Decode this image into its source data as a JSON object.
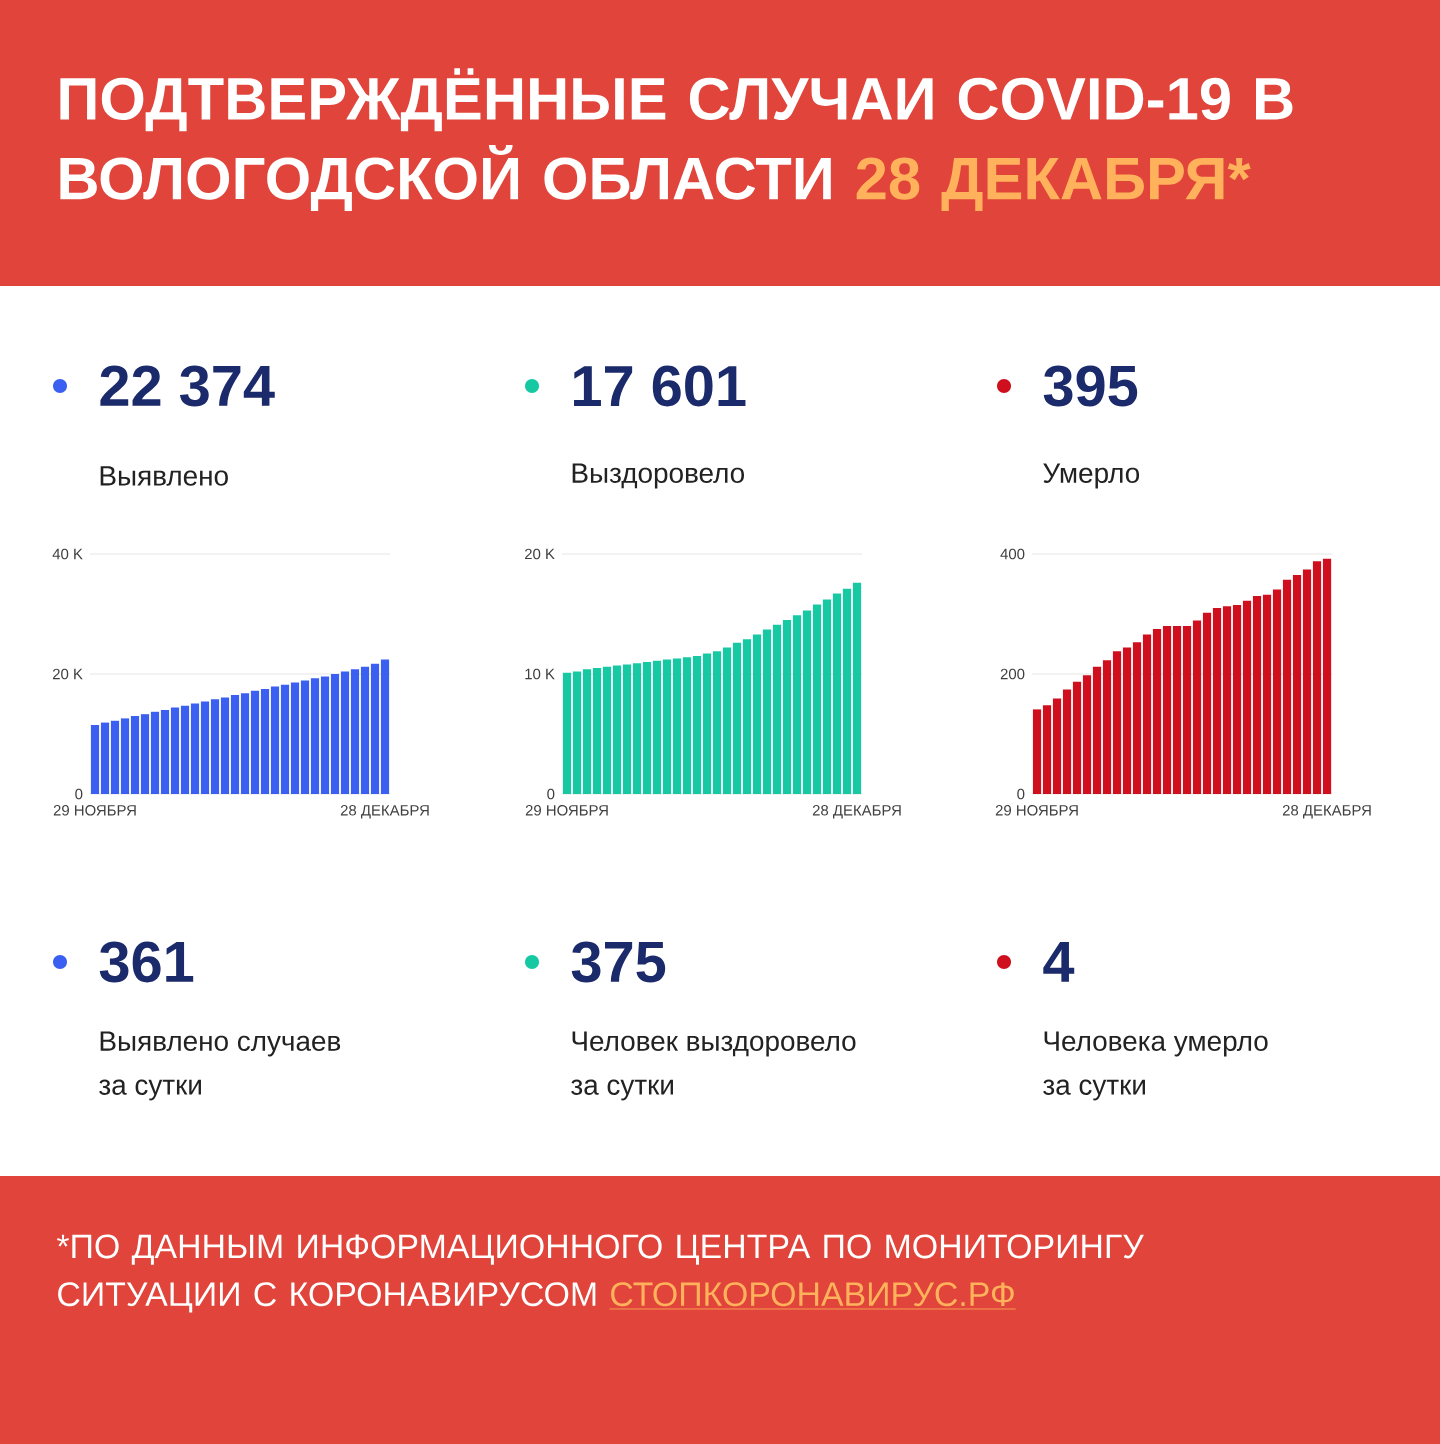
{
  "chart_data": [
    {
      "type": "other",
      "title": "ПОДТВЕРЖДЁННЫЕ СЛУЧАИ COVID-19 В ВОЛОГОДСКОЙ ОБЛАСТИ",
      "subtitle": "28 ДЕКАБРЯ*",
      "annotations": [
        "*ПО ДАННЫМ ИНФОРМАЦИОННОГО ЦЕНТРА ПО МОНИТОРИНГУ СИТУАЦИИ С КОРОНАВИРУСОМ",
        "СТОПКОРОНАВИРУС.РФ"
      ]
    },
    {
      "type": "bar",
      "title": "22 374",
      "subtitle": "Выявлено",
      "annotations": [
        "361",
        "Выявлено случаев",
        "за сутки"
      ],
      "color": "#3b5ff0",
      "grid": "y",
      "categories": [
        "29 НОЯБРЯ",
        null,
        null,
        null,
        null,
        null,
        null,
        null,
        null,
        null,
        null,
        null,
        null,
        null,
        null,
        null,
        null,
        null,
        null,
        null,
        null,
        null,
        null,
        null,
        null,
        null,
        null,
        null,
        null,
        "28 ДЕКАБРЯ"
      ],
      "values": [
        11500,
        11900,
        12200,
        12600,
        13000,
        13300,
        13700,
        14000,
        14400,
        14700,
        15100,
        15400,
        15800,
        16100,
        16500,
        16800,
        17200,
        17500,
        17900,
        18200,
        18600,
        18900,
        19300,
        19600,
        20000,
        20400,
        20800,
        21200,
        21700,
        22400
      ],
      "ylim": [
        0,
        40000
      ],
      "yticks": [
        0,
        {
          "value": 20000,
          "label": "20 K"
        },
        {
          "value": 40000,
          "label": "40 K"
        }
      ]
    },
    {
      "type": "bar",
      "title": "17 601",
      "subtitle": "Выздоровело",
      "annotations": [
        "375",
        "Человек выздоровело",
        "за сутки"
      ],
      "color": "#17c9a3",
      "grid": "y",
      "categories": [
        "29 НОЯБРЯ",
        null,
        null,
        null,
        null,
        null,
        null,
        null,
        null,
        null,
        null,
        null,
        null,
        null,
        null,
        null,
        null,
        null,
        null,
        null,
        null,
        null,
        null,
        null,
        null,
        null,
        null,
        null,
        null,
        "28 ДЕКАБРЯ"
      ],
      "values": [
        10100,
        10200,
        10400,
        10500,
        10600,
        10700,
        10800,
        10900,
        11000,
        11100,
        11200,
        11300,
        11400,
        11500,
        11700,
        11900,
        12200,
        12600,
        12900,
        13300,
        13700,
        14100,
        14500,
        14900,
        15300,
        15800,
        16200,
        16700,
        17100,
        17600
      ],
      "ylim": [
        0,
        20000
      ],
      "yticks": [
        0,
        {
          "value": 10000,
          "label": "10 K"
        },
        {
          "value": 20000,
          "label": "20 K"
        }
      ]
    },
    {
      "type": "bar",
      "title": "395",
      "subtitle": "Умерло",
      "annotations": [
        "4",
        "Человека умерло",
        "за сутки"
      ],
      "color": "#d00f1e",
      "grid": "y",
      "categories": [
        "29 НОЯБРЯ",
        null,
        null,
        null,
        null,
        null,
        null,
        null,
        null,
        null,
        null,
        null,
        null,
        null,
        null,
        null,
        null,
        null,
        null,
        null,
        null,
        null,
        null,
        null,
        null,
        null,
        null,
        null,
        null,
        "28 ДЕКАБРЯ"
      ],
      "values": [
        141,
        148,
        159,
        174,
        187,
        198,
        212,
        223,
        238,
        244,
        253,
        266,
        275,
        280,
        280,
        280,
        289,
        302,
        310,
        313,
        315,
        322,
        330,
        332,
        341,
        357,
        365,
        374,
        388,
        392
      ],
      "ylim": [
        0,
        400
      ],
      "yticks": [
        0,
        200,
        400
      ]
    }
  ]
}
